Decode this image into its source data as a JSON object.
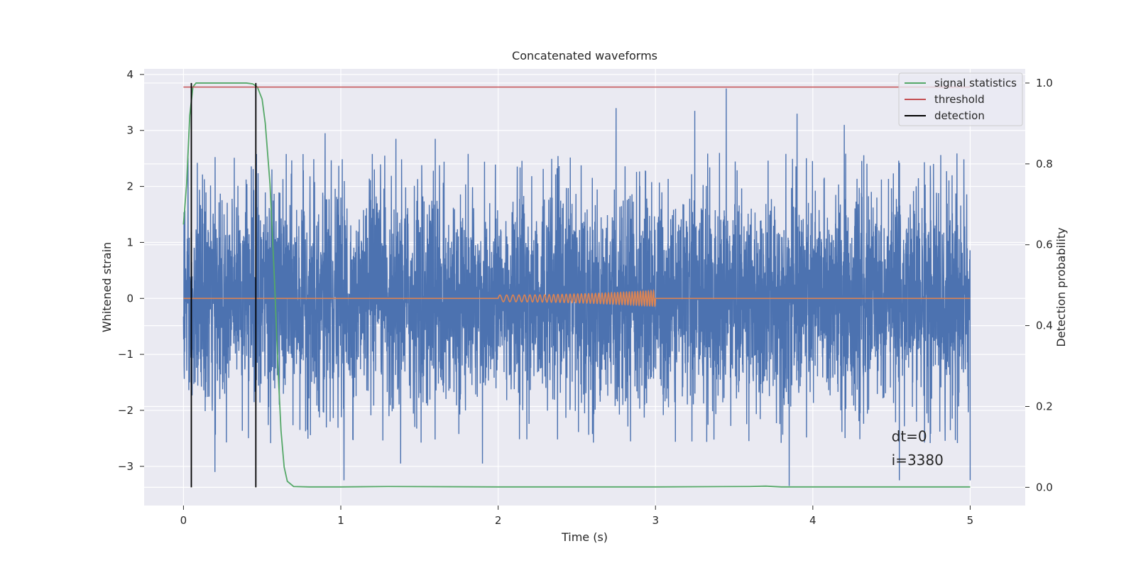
{
  "chart_data": {
    "type": "line",
    "title": "Concatenated waveforms",
    "xlabel": "Time (s)",
    "ylabel": "Whitened strain",
    "y2label": "Detection probability",
    "xlim": [
      -0.25,
      5.35
    ],
    "ylim": [
      -3.7,
      4.1
    ],
    "y2lim": [
      -0.045,
      1.035
    ],
    "xticks": [
      0,
      1,
      2,
      3,
      4,
      5
    ],
    "yticks": [
      -3,
      -2,
      -1,
      0,
      1,
      2,
      3,
      4
    ],
    "y2ticks": [
      0.0,
      0.2,
      0.4,
      0.6,
      0.8,
      1.0
    ],
    "ytick_labels": [
      "−3",
      "−2",
      "−1",
      "0",
      "1",
      "2",
      "3",
      "4"
    ],
    "y2tick_labels": [
      "0.0",
      "0.2",
      "0.4",
      "0.6",
      "0.8",
      "1.0"
    ],
    "grid": true,
    "legend_position": "top-right",
    "legend": [
      {
        "name": "signal statistics",
        "color": "#55a868"
      },
      {
        "name": "threshold",
        "color": "#c44e52"
      },
      {
        "name": "detection",
        "color": "#000000"
      }
    ],
    "series": [
      {
        "name": "",
        "axis": "left",
        "color": "#4c72b0",
        "description": "whitened noise strain, 0 to 5 s",
        "x_range": [
          0,
          5
        ],
        "typical_range": [
          -2.6,
          2.6
        ],
        "peaks": [
          [
            0.9,
            2.95
          ],
          [
            1.35,
            2.85
          ],
          [
            1.6,
            2.85
          ],
          [
            2.75,
            3.4
          ],
          [
            3.25,
            3.35
          ],
          [
            3.45,
            3.75
          ],
          [
            3.9,
            3.3
          ],
          [
            4.2,
            3.1
          ],
          [
            4.55,
            2.6
          ]
        ],
        "troughs": [
          [
            0.2,
            -3.1
          ],
          [
            1.02,
            -3.25
          ],
          [
            1.38,
            -2.95
          ],
          [
            1.9,
            -2.95
          ],
          [
            3.85,
            -3.35
          ],
          [
            4.55,
            -3.25
          ],
          [
            5.0,
            -3.25
          ]
        ]
      },
      {
        "name": "",
        "axis": "left",
        "color": "#dd8452",
        "description": "injected chirp signal, zero outside 2 to 3 s",
        "x": [
          0,
          2,
          2.5,
          3,
          5
        ],
        "amplitude": [
          0,
          0.06,
          0.09,
          0.14,
          0
        ]
      },
      {
        "name": "signal statistics",
        "axis": "right",
        "color": "#55a868",
        "x": [
          0.0,
          0.02,
          0.04,
          0.06,
          0.08,
          0.1,
          0.2,
          0.3,
          0.4,
          0.44,
          0.47,
          0.5,
          0.52,
          0.55,
          0.58,
          0.6,
          0.62,
          0.64,
          0.66,
          0.7,
          0.8,
          1.0,
          1.3,
          2.0,
          3.0,
          3.6,
          3.7,
          3.8,
          4.0,
          5.0
        ],
        "y": [
          0.65,
          0.75,
          0.92,
          0.99,
          1.0,
          1.0,
          1.0,
          1.0,
          1.0,
          0.998,
          0.99,
          0.96,
          0.9,
          0.75,
          0.5,
          0.3,
          0.14,
          0.05,
          0.015,
          0.002,
          0.001,
          0.001,
          0.002,
          0.001,
          0.001,
          0.002,
          0.003,
          0.001,
          0.001,
          0.001
        ]
      },
      {
        "name": "threshold",
        "axis": "right",
        "color": "#c44e52",
        "x": [
          0,
          5
        ],
        "y": [
          0.99,
          0.99
        ]
      },
      {
        "name": "detection",
        "axis": "right",
        "color": "#000000",
        "type": "vertical-lines",
        "x": [
          0.05,
          0.46
        ],
        "y": [
          0,
          1
        ]
      }
    ],
    "annotations": [
      "dt=0",
      "i=3380"
    ]
  }
}
